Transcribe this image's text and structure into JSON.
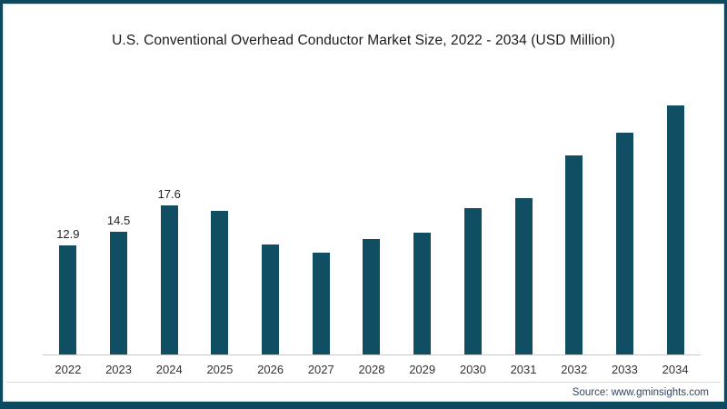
{
  "colors": {
    "bar": "#104f63",
    "frame_border": "#0d4a5f",
    "inner_hairline": "#cfe3ea",
    "axis_line": "#c9c9c9",
    "title_text": "#1a1a1a",
    "tick_text": "#333333",
    "source_text": "#33465c"
  },
  "chart_data": {
    "type": "bar",
    "title": "U.S. Conventional Overhead Conductor Market Size, 2022 - 2034 (USD Million)",
    "categories": [
      "2022",
      "2023",
      "2024",
      "2025",
      "2026",
      "2027",
      "2028",
      "2029",
      "2030",
      "2031",
      "2032",
      "2033",
      "2034"
    ],
    "values": [
      12.9,
      14.5,
      17.6,
      17.0,
      13.0,
      12.1,
      13.7,
      14.4,
      17.3,
      18.5,
      23.5,
      26.2,
      29.5
    ],
    "data_labels": [
      "12.9",
      "14.5",
      "17.6",
      "",
      "",
      "",
      "",
      "",
      "",
      "",
      "",
      "",
      ""
    ],
    "xlabel": "",
    "ylabel": "USD Million",
    "ylim": [
      0,
      32
    ],
    "grid": false,
    "legend": false,
    "bar_color": "#104f63",
    "source": "Source: www.gminsights.com"
  }
}
